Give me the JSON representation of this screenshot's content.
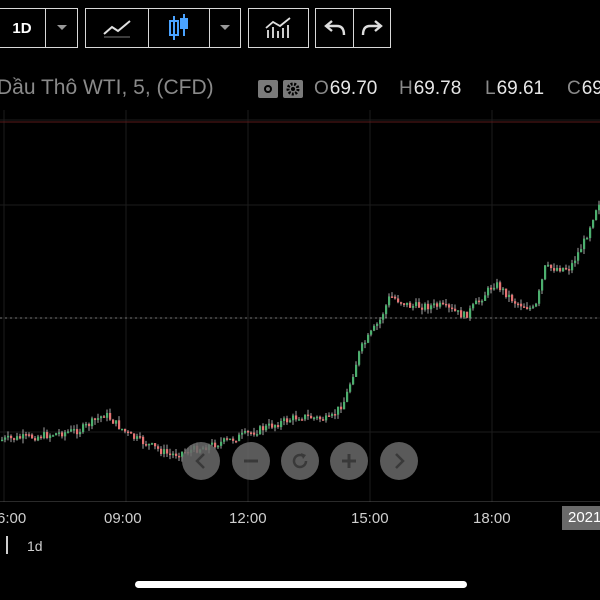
{
  "toolbar": {
    "interval": "1D",
    "icons": [
      "chevron-down-icon",
      "line-chart-icon",
      "candlestick-icon",
      "chevron-down-icon",
      "indicators-icon",
      "undo-icon",
      "redo-icon"
    ]
  },
  "header": {
    "symbol": "Dầu Thô WTI, 5, (CFD)",
    "o_label": "O",
    "o_value": "69.70",
    "h_label": "H",
    "h_value": "69.78",
    "l_label": "L",
    "l_value": "69.61",
    "c_label": "C",
    "c_value": "69"
  },
  "chart_data": {
    "type": "candlestick",
    "interval": "5",
    "x_ticks": [
      "6:00",
      "09:00",
      "12:00",
      "15:00",
      "18:00"
    ],
    "current_date_badge": "2021",
    "up_color": "#4caf6e",
    "down_color": "#e57373"
  },
  "bottom": {
    "interval": "1d"
  }
}
